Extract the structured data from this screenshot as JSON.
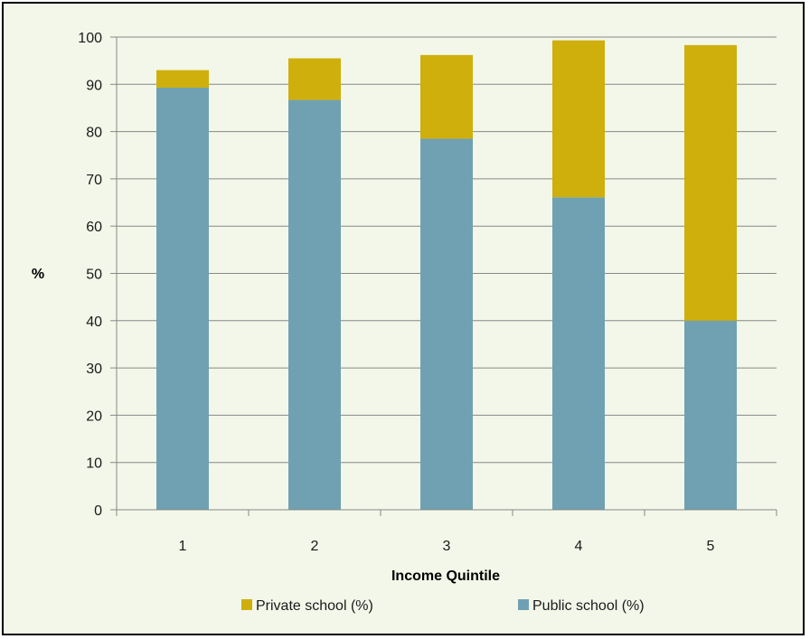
{
  "chart_data": {
    "type": "bar",
    "stacked": true,
    "categories": [
      "1",
      "2",
      "3",
      "4",
      "5"
    ],
    "series": [
      {
        "name": "Public school (%)",
        "color": "#6fa1b2",
        "values": [
          89.3,
          86.7,
          78.5,
          66.1,
          40.0
        ]
      },
      {
        "name": "Private school (%)",
        "color": "#cfaf0c",
        "values": [
          3.7,
          8.8,
          17.7,
          33.2,
          58.3
        ]
      }
    ],
    "xlabel": "Income Quintile",
    "ylabel": "%",
    "ylim": [
      0,
      100
    ],
    "yticks": [
      0,
      10,
      20,
      30,
      40,
      50,
      60,
      70,
      80,
      90,
      100
    ],
    "grid": true,
    "legend": {
      "position": "bottom",
      "order": [
        "Private school (%)",
        "Public school (%)"
      ]
    }
  }
}
